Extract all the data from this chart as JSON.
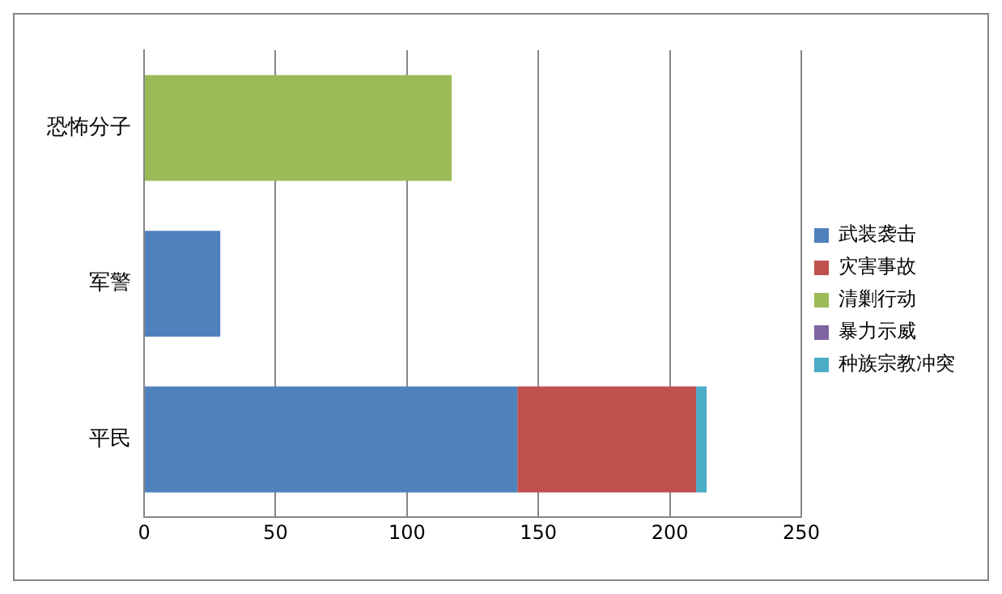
{
  "chart_data": {
    "type": "bar",
    "orientation": "horizontal",
    "stacked": true,
    "categories": [
      "恐怖分子",
      "军警",
      "平民"
    ],
    "series": [
      {
        "name": "武装袭击",
        "color": "#4f81bd",
        "values": [
          0,
          29,
          142
        ]
      },
      {
        "name": "灾害事故",
        "color": "#c0504d",
        "values": [
          0,
          0,
          68
        ]
      },
      {
        "name": "清剿行动",
        "color": "#9bbb59",
        "values": [
          117,
          0,
          0
        ]
      },
      {
        "name": "暴力示威",
        "color": "#8064a2",
        "values": [
          0,
          0,
          0
        ]
      },
      {
        "name": "种族宗教冲突",
        "color": "#4bacc6",
        "values": [
          0,
          0,
          4
        ]
      }
    ],
    "xlim": [
      0,
      250
    ],
    "xticks": [
      0,
      50,
      100,
      150,
      200,
      250
    ],
    "grid": "x",
    "legend": "right"
  }
}
